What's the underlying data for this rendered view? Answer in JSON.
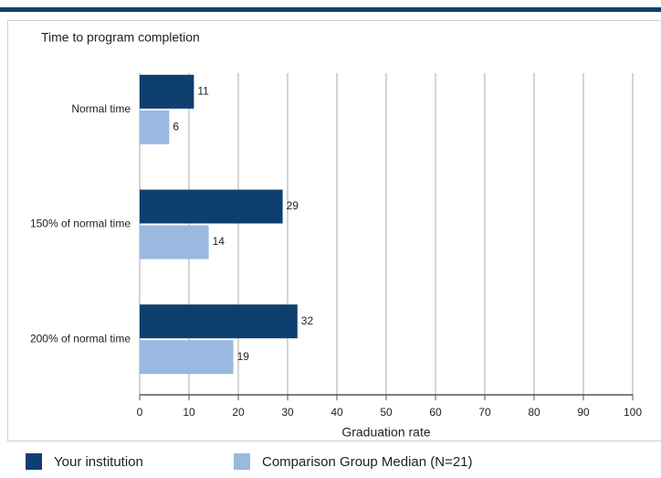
{
  "chart_data": {
    "type": "bar",
    "orientation": "horizontal",
    "title": "Time to program completion",
    "x_label": "Graduation rate",
    "categories": [
      "Normal time",
      "150% of normal time",
      "200% of normal time"
    ],
    "series": [
      {
        "name": "Your institution",
        "color": "#0e3f6e",
        "values": [
          11,
          29,
          32
        ]
      },
      {
        "name": "Comparison Group Median (N=21)",
        "color": "#9ab8e0",
        "values": [
          6,
          14,
          19
        ]
      }
    ],
    "xlim": [
      0,
      100
    ],
    "xticks": [
      0,
      10,
      20,
      30,
      40,
      50,
      60,
      70,
      80,
      90,
      100
    ],
    "grid": true
  }
}
